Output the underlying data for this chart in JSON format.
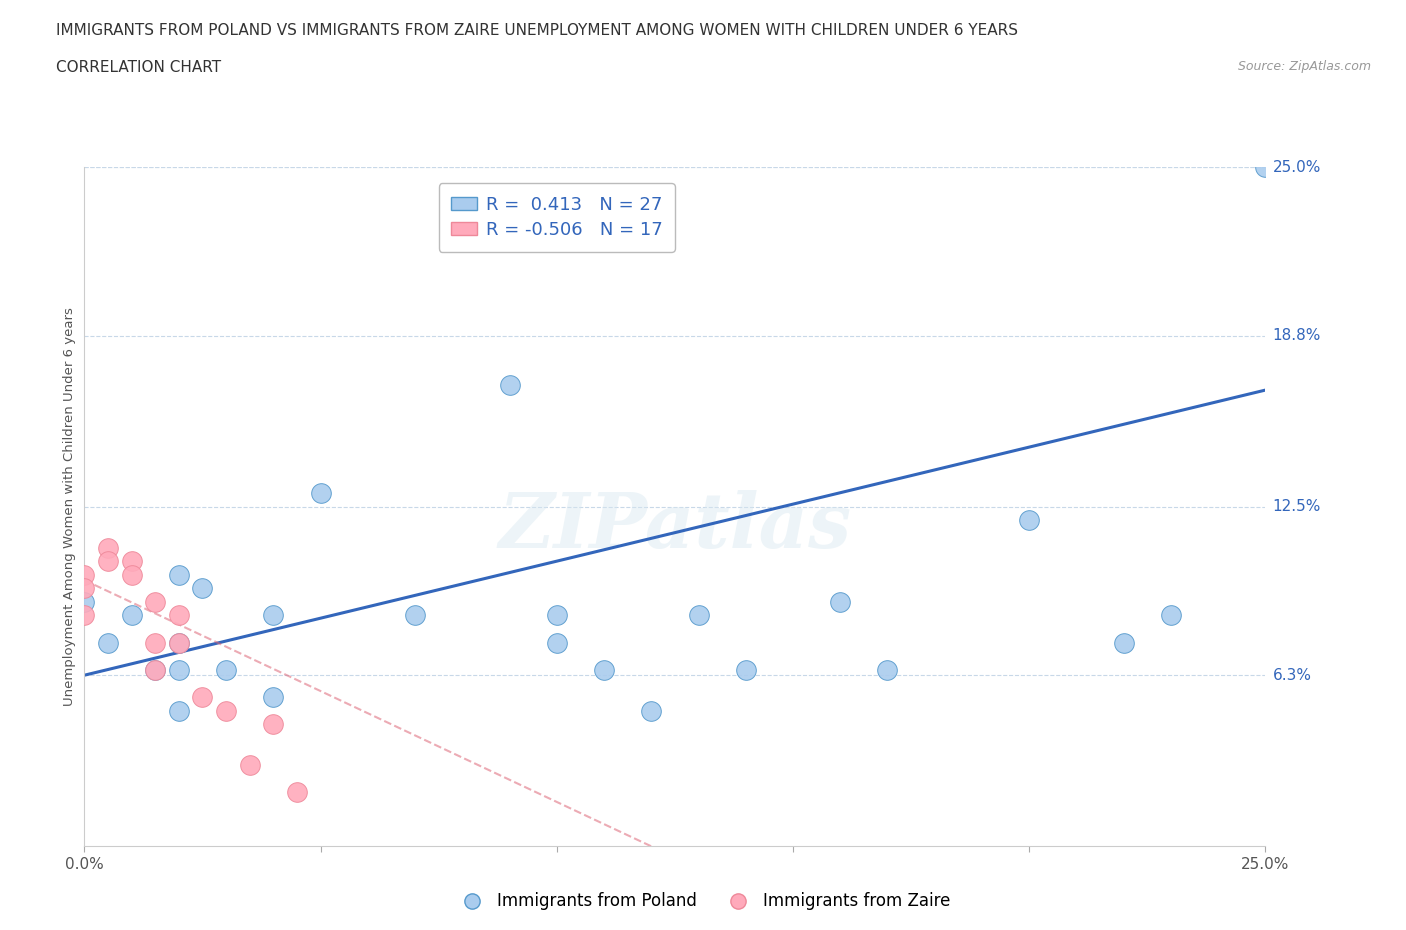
{
  "title_line1": "IMMIGRANTS FROM POLAND VS IMMIGRANTS FROM ZAIRE UNEMPLOYMENT AMONG WOMEN WITH CHILDREN UNDER 6 YEARS",
  "title_line2": "CORRELATION CHART",
  "source_text": "Source: ZipAtlas.com",
  "ylabel": "Unemployment Among Women with Children Under 6 years",
  "watermark": "ZIPatlas",
  "xlim": [
    0.0,
    0.25
  ],
  "ylim": [
    0.0,
    0.25
  ],
  "ytick_values_right": [
    0.25,
    0.188,
    0.125,
    0.063
  ],
  "ytick_labels_right": [
    "25.0%",
    "18.8%",
    "12.5%",
    "6.3%"
  ],
  "poland_R": 0.413,
  "poland_N": 27,
  "zaire_R": -0.506,
  "zaire_N": 17,
  "poland_color": "#aaccee",
  "poland_edge_color": "#5599cc",
  "poland_line_color": "#3366bb",
  "zaire_color": "#ffaabb",
  "zaire_edge_color": "#ee8899",
  "zaire_line_color": "#dd6677",
  "poland_scatter_x": [
    0.0,
    0.005,
    0.01,
    0.015,
    0.02,
    0.02,
    0.02,
    0.02,
    0.025,
    0.03,
    0.04,
    0.04,
    0.05,
    0.07,
    0.09,
    0.1,
    0.1,
    0.11,
    0.12,
    0.13,
    0.14,
    0.16,
    0.17,
    0.2,
    0.22,
    0.23,
    0.25
  ],
  "poland_scatter_y": [
    0.09,
    0.075,
    0.085,
    0.065,
    0.1,
    0.075,
    0.065,
    0.05,
    0.095,
    0.065,
    0.085,
    0.055,
    0.13,
    0.085,
    0.17,
    0.085,
    0.075,
    0.065,
    0.05,
    0.085,
    0.065,
    0.09,
    0.065,
    0.12,
    0.075,
    0.085,
    0.25
  ],
  "zaire_scatter_x": [
    0.0,
    0.0,
    0.0,
    0.005,
    0.005,
    0.01,
    0.01,
    0.015,
    0.015,
    0.015,
    0.02,
    0.02,
    0.025,
    0.03,
    0.035,
    0.04,
    0.045
  ],
  "zaire_scatter_y": [
    0.1,
    0.095,
    0.085,
    0.11,
    0.105,
    0.105,
    0.1,
    0.09,
    0.075,
    0.065,
    0.085,
    0.075,
    0.055,
    0.05,
    0.03,
    0.045,
    0.02
  ],
  "poland_trend_x": [
    0.0,
    0.25
  ],
  "poland_trend_y": [
    0.063,
    0.168
  ],
  "zaire_trend_x": [
    0.0,
    0.12
  ],
  "zaire_trend_y": [
    0.098,
    0.0
  ],
  "background_color": "#ffffff",
  "grid_color": "#c8d8e8",
  "title_fontsize": 11,
  "legend_fontsize": 13
}
